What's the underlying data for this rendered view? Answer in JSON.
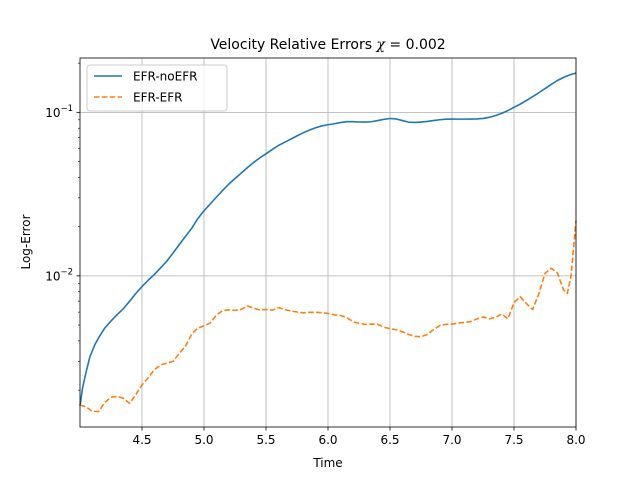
{
  "chart_data": {
    "type": "line",
    "title": "Velocity Relative Errors χ = 0.002",
    "title_text": "Velocity Relative Errors ",
    "title_symbol": "χ",
    "title_rest": " = 0.002",
    "xlabel": "Time",
    "ylabel": "Log-Error",
    "xlim": [
      4.0,
      8.0
    ],
    "ylim": [
      0.00119,
      0.215
    ],
    "yscale": "log",
    "grid": true,
    "legend_position": "top-left",
    "xticks": [
      {
        "value": 4.5,
        "label": "4.5"
      },
      {
        "value": 5.0,
        "label": "5.0"
      },
      {
        "value": 5.5,
        "label": "5.5"
      },
      {
        "value": 6.0,
        "label": "6.0"
      },
      {
        "value": 6.5,
        "label": "6.5"
      },
      {
        "value": 7.0,
        "label": "7.0"
      },
      {
        "value": 7.5,
        "label": "7.5"
      },
      {
        "value": 8.0,
        "label": "8.0"
      }
    ],
    "yticks": [
      {
        "value": 0.01,
        "base": "10",
        "exp": "−2"
      },
      {
        "value": 0.1,
        "base": "10",
        "exp": "−1"
      }
    ],
    "series": [
      {
        "name": "EFR-noEFR",
        "color": "#1f77b4",
        "style": "solid",
        "x": [
          4.0,
          4.02,
          4.05,
          4.08,
          4.12,
          4.16,
          4.2,
          4.25,
          4.3,
          4.35,
          4.4,
          4.45,
          4.5,
          4.55,
          4.6,
          4.65,
          4.7,
          4.75,
          4.8,
          4.85,
          4.9,
          4.95,
          5.0,
          5.05,
          5.1,
          5.15,
          5.2,
          5.25,
          5.3,
          5.35,
          5.4,
          5.45,
          5.5,
          5.55,
          5.6,
          5.65,
          5.7,
          5.75,
          5.8,
          5.85,
          5.9,
          5.95,
          6.0,
          6.05,
          6.1,
          6.15,
          6.2,
          6.25,
          6.3,
          6.35,
          6.4,
          6.45,
          6.5,
          6.55,
          6.6,
          6.65,
          6.7,
          6.75,
          6.8,
          6.85,
          6.9,
          6.95,
          7.0,
          7.05,
          7.1,
          7.15,
          7.2,
          7.25,
          7.3,
          7.35,
          7.4,
          7.45,
          7.5,
          7.55,
          7.6,
          7.65,
          7.7,
          7.75,
          7.8,
          7.85,
          7.9,
          7.95,
          8.0
        ],
        "y": [
          0.0016,
          0.00205,
          0.0026,
          0.0032,
          0.0038,
          0.0043,
          0.0048,
          0.0053,
          0.0058,
          0.0063,
          0.007,
          0.0078,
          0.0086,
          0.0094,
          0.0102,
          0.0112,
          0.0123,
          0.0138,
          0.0155,
          0.0174,
          0.0195,
          0.0224,
          0.025,
          0.0275,
          0.0303,
          0.0333,
          0.0364,
          0.0394,
          0.0425,
          0.0459,
          0.0494,
          0.0527,
          0.0558,
          0.0592,
          0.0627,
          0.0656,
          0.0686,
          0.0718,
          0.075,
          0.0778,
          0.0805,
          0.0826,
          0.084,
          0.0852,
          0.0866,
          0.0877,
          0.0877,
          0.0873,
          0.0872,
          0.0876,
          0.0891,
          0.0906,
          0.0917,
          0.0911,
          0.0891,
          0.0871,
          0.0868,
          0.0872,
          0.088,
          0.0891,
          0.0901,
          0.0908,
          0.091,
          0.0909,
          0.0909,
          0.091,
          0.0911,
          0.0918,
          0.0932,
          0.0955,
          0.0986,
          0.1025,
          0.1074,
          0.1123,
          0.118,
          0.1246,
          0.1318,
          0.1398,
          0.1482,
          0.1566,
          0.1637,
          0.1696,
          0.1741
        ]
      },
      {
        "name": "EFR-EFR",
        "color": "#ff7f0e",
        "style": "dashed",
        "x": [
          4.0,
          4.05,
          4.1,
          4.15,
          4.2,
          4.25,
          4.3,
          4.35,
          4.4,
          4.45,
          4.5,
          4.55,
          4.6,
          4.65,
          4.7,
          4.75,
          4.8,
          4.85,
          4.9,
          4.95,
          5.0,
          5.05,
          5.1,
          5.15,
          5.2,
          5.25,
          5.3,
          5.35,
          5.4,
          5.45,
          5.5,
          5.55,
          5.6,
          5.65,
          5.7,
          5.75,
          5.8,
          5.85,
          5.9,
          5.95,
          6.0,
          6.05,
          6.1,
          6.15,
          6.2,
          6.25,
          6.3,
          6.35,
          6.4,
          6.45,
          6.5,
          6.55,
          6.6,
          6.65,
          6.7,
          6.75,
          6.8,
          6.85,
          6.9,
          6.95,
          7.0,
          7.05,
          7.1,
          7.15,
          7.2,
          7.25,
          7.3,
          7.35,
          7.4,
          7.45,
          7.5,
          7.55,
          7.6,
          7.65,
          7.7,
          7.75,
          7.8,
          7.85,
          7.9,
          7.93,
          7.96,
          8.0
        ],
        "y": [
          0.00162,
          0.00158,
          0.00148,
          0.00148,
          0.00168,
          0.00181,
          0.00183,
          0.00178,
          0.00166,
          0.00188,
          0.00215,
          0.00238,
          0.00267,
          0.00285,
          0.00293,
          0.003,
          0.00335,
          0.0037,
          0.00439,
          0.0048,
          0.00494,
          0.00515,
          0.00576,
          0.00612,
          0.0062,
          0.00615,
          0.00623,
          0.00655,
          0.00635,
          0.00618,
          0.00623,
          0.00616,
          0.0064,
          0.00621,
          0.00611,
          0.00601,
          0.00594,
          0.00598,
          0.00599,
          0.00595,
          0.00589,
          0.00578,
          0.00572,
          0.00558,
          0.00525,
          0.00512,
          0.00505,
          0.00507,
          0.00506,
          0.00485,
          0.00475,
          0.00468,
          0.00455,
          0.00438,
          0.00427,
          0.00424,
          0.00438,
          0.00468,
          0.00496,
          0.00505,
          0.00507,
          0.00514,
          0.00519,
          0.00525,
          0.00545,
          0.00561,
          0.00546,
          0.00556,
          0.00585,
          0.00546,
          0.00685,
          0.00746,
          0.00677,
          0.00622,
          0.00774,
          0.01036,
          0.01113,
          0.0104,
          0.0082,
          0.0078,
          0.01,
          0.0218
        ]
      }
    ]
  }
}
